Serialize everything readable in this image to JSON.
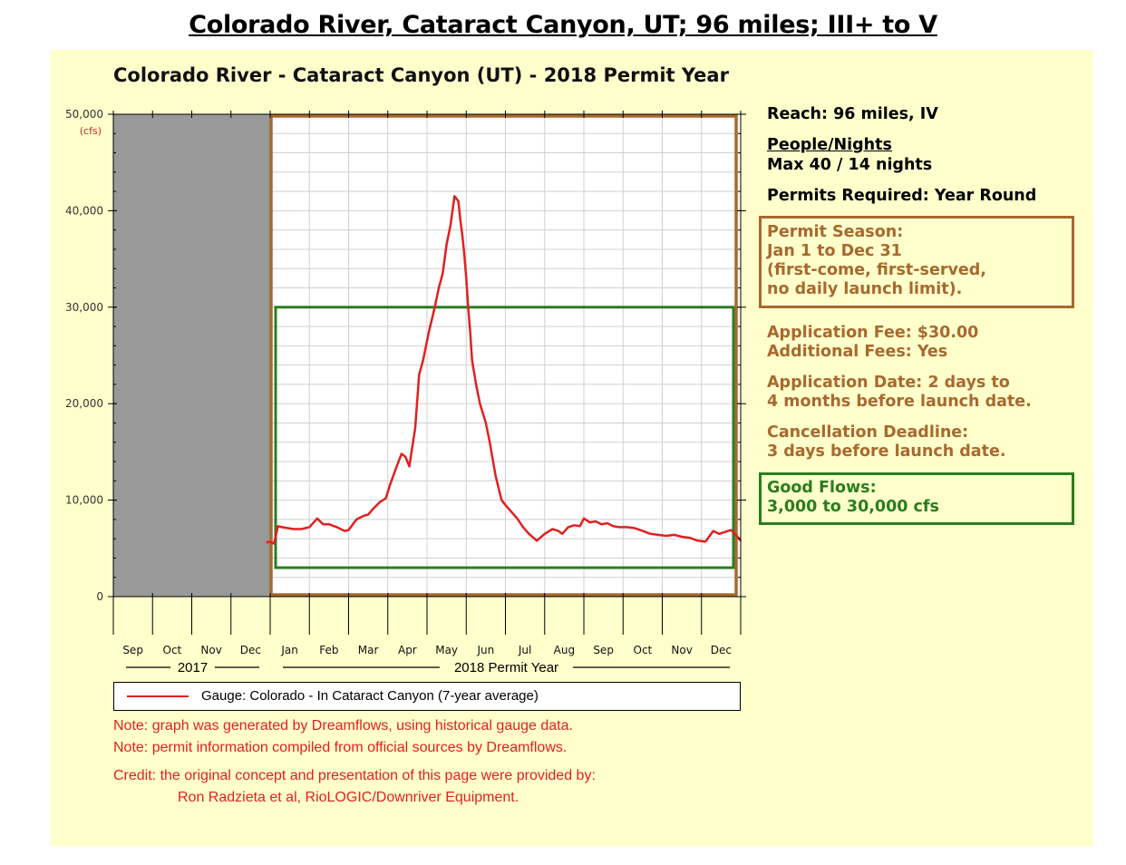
{
  "page_heading": "Colorado River, Cataract Canyon, UT; 96 miles; III+ to V",
  "chart_title": "Colorado River - Cataract Canyon (UT) - 2018 Permit Year",
  "info": {
    "reach": "Reach: 96 miles, IV",
    "people_nights_label": "People/Nights",
    "people_nights_value": "Max 40 / 14 nights",
    "permits_required": "Permits Required: Year Round",
    "permit_season_lines": [
      "Permit Season:",
      "Jan 1 to Dec 31",
      "(first-come, first-served,",
      "no daily launch limit)."
    ],
    "application_fee": "Application Fee: $30.00",
    "additional_fees": "Additional Fees: Yes",
    "application_date_lines": [
      "Application Date: 2 days to",
      "4 months before launch date."
    ],
    "cancellation_lines": [
      "Cancellation Deadline:",
      "3 days before launch date."
    ],
    "good_flows_lines": [
      "Good Flows:",
      "3,000 to 30,000 cfs"
    ]
  },
  "legend": {
    "label": "Gauge: Colorado - In Cataract Canyon (7-year average)"
  },
  "notes": [
    "Note: graph was generated by Dreamflows, using historical gauge data.",
    "Note: permit information compiled from official sources by Dreamflows.",
    "Credit: the original concept and presentation of this page were provided by:",
    "Ron Radzieta et al, RioLOGIC/Downriver Equipment."
  ],
  "colors": {
    "flow": "#e02020",
    "permit_season": "#a8692f",
    "good_flows": "#2b7d1f",
    "pre_season": "#999999",
    "panel": "#ffffcc"
  },
  "chart_data": {
    "type": "line",
    "title": "Colorado River - Cataract Canyon (UT) - 2018 Permit Year",
    "ylabel": "(cfs)",
    "ylim": [
      0,
      50000
    ],
    "yticks": [
      0,
      10000,
      20000,
      30000,
      40000,
      50000
    ],
    "ytick_labels": [
      "0",
      "10,000",
      "20,000",
      "30,000",
      "40,000",
      "50,000"
    ],
    "x_months": [
      "Sep",
      "Oct",
      "Nov",
      "Dec",
      "Jan",
      "Feb",
      "Mar",
      "Apr",
      "May",
      "Jun",
      "Jul",
      "Aug",
      "Sep",
      "Oct",
      "Nov",
      "Dec"
    ],
    "x_groups": [
      {
        "label": "2017",
        "from_month": 0,
        "to_month": 4
      },
      {
        "label": "2018 Permit Year",
        "from_month": 4,
        "to_month": 16
      }
    ],
    "shaded_region_months": [
      0,
      4
    ],
    "permit_season_months": [
      4,
      16
    ],
    "good_flows": [
      3000,
      30000
    ],
    "grid": true,
    "series": [
      {
        "name": "Gauge: Colorado - In Cataract Canyon (7-year average)",
        "x_month": [
          3.9,
          4.0,
          4.1,
          4.2,
          4.3,
          4.45,
          4.6,
          4.8,
          5.0,
          5.2,
          5.35,
          5.5,
          5.7,
          5.9,
          6.0,
          6.2,
          6.4,
          6.5,
          6.65,
          6.8,
          6.95,
          7.05,
          7.2,
          7.35,
          7.45,
          7.55,
          7.7,
          7.8,
          7.9,
          8.05,
          8.2,
          8.3,
          8.4,
          8.5,
          8.6,
          8.7,
          8.8,
          8.85,
          8.9,
          8.95,
          9.0,
          9.05,
          9.1,
          9.15,
          9.25,
          9.35,
          9.5,
          9.6,
          9.75,
          9.9,
          10.0,
          10.15,
          10.3,
          10.45,
          10.6,
          10.8,
          11.0,
          11.2,
          11.35,
          11.45,
          11.6,
          11.75,
          11.9,
          12.0,
          12.15,
          12.3,
          12.45,
          12.6,
          12.75,
          12.9,
          13.1,
          13.3,
          13.5,
          13.7,
          13.9,
          14.1,
          14.3,
          14.5,
          14.7,
          14.9,
          15.1,
          15.3,
          15.45,
          15.6,
          15.75,
          15.9,
          16.0
        ],
        "y": [
          5600,
          5700,
          5500,
          7300,
          7200,
          7100,
          7000,
          7000,
          7200,
          8100,
          7500,
          7500,
          7200,
          6800,
          6900,
          8000,
          8400,
          8500,
          9200,
          9800,
          10200,
          11500,
          13200,
          14800,
          14500,
          13500,
          17500,
          23000,
          24500,
          27500,
          30000,
          32000,
          33500,
          36500,
          38500,
          41500,
          41000,
          39000,
          37500,
          35500,
          33000,
          30000,
          27500,
          24500,
          22000,
          20000,
          18000,
          16000,
          12500,
          10000,
          9500,
          8800,
          8100,
          7200,
          6500,
          5800,
          6500,
          7000,
          6800,
          6500,
          7200,
          7400,
          7300,
          8100,
          7700,
          7800,
          7500,
          7600,
          7300,
          7200,
          7200,
          7100,
          6800,
          6500,
          6400,
          6300,
          6400,
          6200,
          6100,
          5800,
          5700,
          6800,
          6500,
          6700,
          6900,
          6300,
          5800
        ]
      }
    ]
  }
}
